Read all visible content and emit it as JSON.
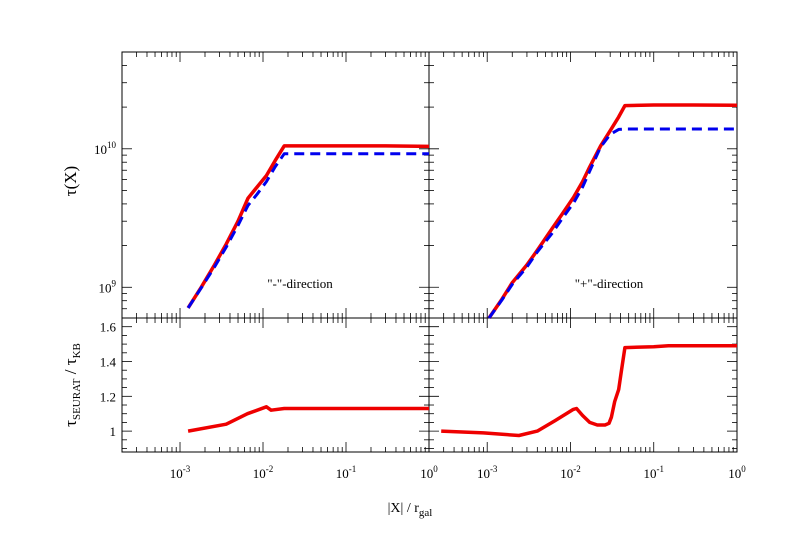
{
  "chart_data": {
    "type": "line",
    "shared_xlabel": {
      "main": "|X| / r",
      "sub": "gal"
    },
    "x_ticks": [
      {
        "base": "10",
        "exp": "-3"
      },
      {
        "base": "10",
        "exp": "-2"
      },
      {
        "base": "10",
        "exp": "-1"
      },
      {
        "base": "10",
        "exp": "0"
      }
    ],
    "xlim": [
      0.0002,
      1
    ],
    "x_scale": "log",
    "top_ylabel": "τ(X)",
    "top_ylim": [
      600000000,
      50000000000
    ],
    "top_y_scale": "log",
    "top_y_ticks": [
      {
        "base": "10",
        "exp": "9"
      },
      {
        "base": "10",
        "exp": "10"
      }
    ],
    "bottom_ylabel": {
      "main": "τ",
      "sub1": "SEURAT",
      "sep": " / τ",
      "sub2": "KB"
    },
    "bottom_ylim": [
      0.88,
      1.65
    ],
    "bottom_y_ticks": [
      "1",
      "1.2",
      "1.4",
      "1.6"
    ],
    "colors": {
      "red": "#ee0000",
      "blue": "#0000ee"
    },
    "panels": [
      {
        "annotation": "\"-\"-direction",
        "series": [
          {
            "color": "red",
            "style": "solid",
            "x": [
              0.00125,
              0.0018,
              0.0026,
              0.0036,
              0.005,
              0.0066,
              0.0085,
              0.011,
              0.014,
              0.018,
              0.05,
              0.1,
              0.3,
              1.0
            ],
            "y": [
              710000000,
              1000000000,
              1450000000,
              2050000000,
              3000000000,
              4400000000,
              5300000000,
              6400000000,
              8200000000,
              10500000000,
              10500000000,
              10500000000,
              10500000000,
              10400000000
            ]
          },
          {
            "color": "blue",
            "style": "dashed",
            "x": [
              0.00125,
              0.0018,
              0.0026,
              0.0036,
              0.005,
              0.0066,
              0.0085,
              0.011,
              0.014,
              0.018,
              0.05,
              0.1,
              0.3,
              1.0
            ],
            "y": [
              710000000,
              990000000,
              1400000000,
              1950000000,
              2800000000,
              3900000000,
              4700000000,
              5800000000,
              7400000000,
              9200000000,
              9200000000,
              9200000000,
              9200000000,
              9200000000
            ]
          }
        ],
        "ratio": {
          "x": [
            0.00125,
            0.0036,
            0.0065,
            0.011,
            0.0125,
            0.018,
            0.05,
            0.1,
            0.3,
            1.0
          ],
          "y": [
            1.0,
            1.04,
            1.1,
            1.14,
            1.12,
            1.13,
            1.13,
            1.13,
            1.13,
            1.13
          ]
        }
      },
      {
        "annotation": "\"+\"-direction",
        "series": [
          {
            "color": "red",
            "style": "solid",
            "x": [
              0.00105,
              0.0015,
              0.002,
              0.003,
              0.004,
              0.006,
              0.008,
              0.011,
              0.014,
              0.017,
              0.023,
              0.03,
              0.038,
              0.045,
              0.1,
              0.3,
              1.0
            ],
            "y": [
              600000000,
              820000000,
              1080000000,
              1450000000,
              1850000000,
              2650000000,
              3400000000,
              4500000000,
              5800000000,
              7400000000,
              10500000000,
              13500000000,
              17000000000,
              20500000000,
              20700000000,
              20700000000,
              20600000000
            ]
          },
          {
            "color": "blue",
            "style": "dashed",
            "x": [
              0.00105,
              0.0015,
              0.002,
              0.003,
              0.004,
              0.006,
              0.008,
              0.011,
              0.014,
              0.017,
              0.023,
              0.03,
              0.038,
              0.045,
              0.1,
              0.3,
              1.0
            ],
            "y": [
              600000000,
              810000000,
              1050000000,
              1400000000,
              1800000000,
              2450000000,
              3150000000,
              4100000000,
              5300000000,
              6900000000,
              10300000000,
              12700000000,
              13800000000,
              13900000000,
              13900000000,
              13900000000,
              13900000000
            ]
          }
        ],
        "ratio": {
          "x": [
            0.00028,
            0.0009,
            0.0024,
            0.004,
            0.0065,
            0.0108,
            0.0118,
            0.014,
            0.017,
            0.021,
            0.026,
            0.029,
            0.031,
            0.034,
            0.038,
            0.041,
            0.045,
            0.1,
            0.15,
            0.3,
            1.0
          ],
          "y": [
            1.0,
            0.99,
            0.975,
            1.0,
            1.06,
            1.125,
            1.13,
            1.09,
            1.05,
            1.035,
            1.035,
            1.045,
            1.08,
            1.17,
            1.24,
            1.35,
            1.48,
            1.485,
            1.49,
            1.49,
            1.49
          ]
        }
      }
    ]
  }
}
